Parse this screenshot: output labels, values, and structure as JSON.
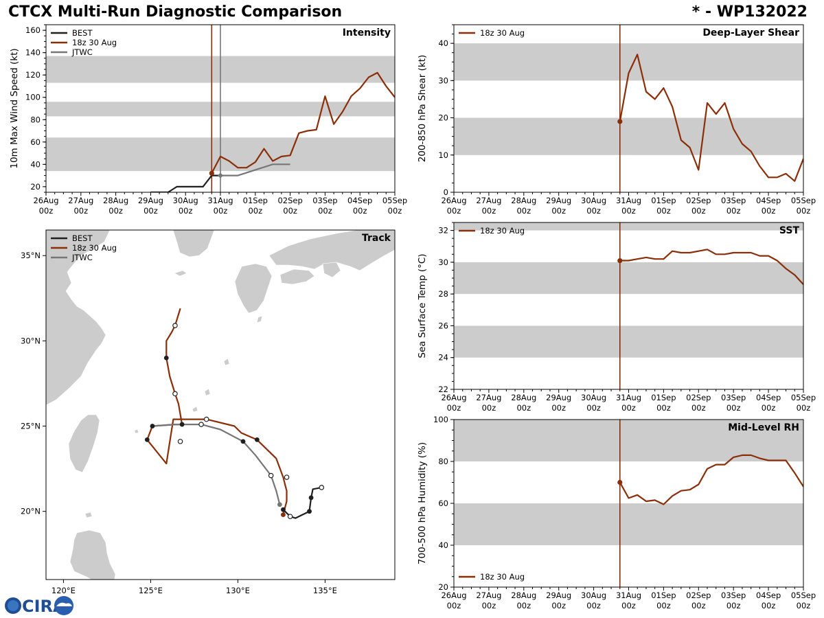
{
  "header": {
    "title": "CTCX Multi-Run Diagnostic Comparison",
    "storm": "* - WP132022"
  },
  "logo_text": "CIRA",
  "time_axis": {
    "labels": [
      "26Aug",
      "27Aug",
      "28Aug",
      "29Aug",
      "30Aug",
      "31Aug",
      "01Sep",
      "02Sep",
      "03Sep",
      "04Sep",
      "05Sep"
    ],
    "sublabel": "00z",
    "init_label": "18z 30 Aug"
  },
  "colors": {
    "best": "#1f1f1f",
    "run": "#8b2e08",
    "jtwc": "#767676",
    "band": "#cccccc",
    "land": "#cccccc"
  },
  "chart_data": [
    {
      "id": "intensity",
      "type": "line",
      "title": "Intensity",
      "ylabel": "10m Max Wind Speed (kt)",
      "x_unit": "days since 26Aug 00z",
      "xlim": [
        0,
        10
      ],
      "ylim": [
        15,
        165
      ],
      "yticks": [
        20,
        40,
        60,
        80,
        100,
        120,
        140,
        160
      ],
      "shaded_bands": [
        [
          34,
          64
        ],
        [
          83,
          96
        ],
        [
          113,
          137
        ]
      ],
      "init_line": 4.75,
      "jtwc_line": 5.0,
      "legend": [
        "BEST",
        "18z 30 Aug",
        "JTWC"
      ],
      "series": [
        {
          "name": "BEST",
          "x": [
            3.0,
            3.25,
            3.5,
            3.75,
            4.0,
            4.25,
            4.5,
            4.75,
            5.0
          ],
          "y": [
            15,
            15,
            15,
            20,
            20,
            20,
            20,
            30,
            30
          ]
        },
        {
          "name": "18z 30 Aug",
          "x": [
            4.75,
            5.0,
            5.25,
            5.5,
            5.75,
            6.0,
            6.25,
            6.5,
            6.75,
            7.0,
            7.25,
            7.5,
            7.75,
            8.0,
            8.25,
            8.5,
            8.75,
            9.0,
            9.25,
            9.5,
            9.75,
            10.0
          ],
          "y": [
            32,
            47,
            43,
            37,
            37,
            42,
            54,
            43,
            47,
            48,
            68,
            70,
            71,
            101,
            76,
            87,
            101,
            108,
            118,
            122,
            110,
            100
          ]
        },
        {
          "name": "JTWC",
          "x": [
            5.0,
            5.5,
            6.5,
            7.0
          ],
          "y": [
            30,
            30,
            40,
            40
          ]
        }
      ]
    },
    {
      "id": "shear",
      "type": "line",
      "title": "Deep-Layer Shear",
      "ylabel": "200-850 hPa Shear (kt)",
      "x_unit": "days since 26Aug 00z",
      "xlim": [
        0,
        10
      ],
      "ylim": [
        0,
        45
      ],
      "yticks": [
        0,
        10,
        20,
        30,
        40
      ],
      "shaded_bands": [
        [
          10,
          20
        ],
        [
          30,
          40
        ]
      ],
      "init_line": 4.75,
      "legend": [
        "18z 30 Aug"
      ],
      "series": [
        {
          "name": "18z 30 Aug",
          "x": [
            4.75,
            5.0,
            5.25,
            5.5,
            5.75,
            6.0,
            6.25,
            6.5,
            6.75,
            7.0,
            7.25,
            7.5,
            7.75,
            8.0,
            8.25,
            8.5,
            8.75,
            9.0,
            9.25,
            9.5,
            9.75,
            10.0
          ],
          "y": [
            19,
            32,
            37,
            27,
            25,
            28,
            23,
            14,
            12,
            6,
            24,
            21,
            24,
            17,
            13,
            11,
            7,
            4,
            4,
            5,
            3,
            9
          ]
        }
      ]
    },
    {
      "id": "sst",
      "type": "line",
      "title": "SST",
      "ylabel": "Sea Surface Temp (°C)",
      "x_unit": "days since 26Aug 00z",
      "xlim": [
        0,
        10
      ],
      "ylim": [
        22,
        32.5
      ],
      "yticks": [
        22,
        24,
        26,
        28,
        30,
        32
      ],
      "shaded_bands": [
        [
          24,
          26
        ],
        [
          28,
          30
        ],
        [
          32,
          34
        ]
      ],
      "init_line": 4.75,
      "legend": [
        "18z 30 Aug"
      ],
      "series": [
        {
          "name": "18z 30 Aug",
          "x": [
            4.75,
            5.0,
            5.25,
            5.5,
            5.75,
            6.0,
            6.25,
            6.5,
            6.75,
            7.0,
            7.25,
            7.5,
            7.75,
            8.0,
            8.25,
            8.5,
            8.75,
            9.0,
            9.25,
            9.5,
            9.75,
            10.0
          ],
          "y": [
            30.1,
            30.1,
            30.2,
            30.3,
            30.2,
            30.2,
            30.7,
            30.6,
            30.6,
            30.7,
            30.8,
            30.5,
            30.5,
            30.6,
            30.6,
            30.6,
            30.4,
            30.4,
            30.1,
            29.6,
            29.2,
            28.6
          ]
        }
      ]
    },
    {
      "id": "rh",
      "type": "line",
      "title": "Mid-Level RH",
      "ylabel": "700-500 hPa Humidity (%)",
      "x_unit": "days since 26Aug 00z",
      "xlim": [
        0,
        10
      ],
      "ylim": [
        20,
        100
      ],
      "yticks": [
        20,
        40,
        60,
        80,
        100
      ],
      "shaded_bands": [
        [
          40,
          60
        ],
        [
          80,
          100
        ]
      ],
      "init_line": 4.75,
      "legend": [
        "18z 30 Aug"
      ],
      "series": [
        {
          "name": "18z 30 Aug",
          "x": [
            4.75,
            5.0,
            5.25,
            5.5,
            5.75,
            6.0,
            6.25,
            6.5,
            6.75,
            7.0,
            7.25,
            7.5,
            7.75,
            8.0,
            8.25,
            8.5,
            8.75,
            9.0,
            9.25,
            9.5,
            9.75,
            10.0
          ],
          "y": [
            70,
            62.5,
            64,
            61,
            61.5,
            59.5,
            63.5,
            66,
            66.5,
            69,
            76.5,
            78.5,
            78.5,
            82,
            83,
            83,
            81.5,
            80.5,
            80.5,
            80.5,
            74.5,
            68
          ]
        }
      ]
    },
    {
      "id": "track",
      "type": "scatter",
      "title": "Track",
      "xlim": [
        119,
        139
      ],
      "ylim": [
        16,
        36.5
      ],
      "xticks": [
        120,
        125,
        130,
        135
      ],
      "xtick_labels": [
        "120°E",
        "125°E",
        "130°E",
        "135°E"
      ],
      "yticks": [
        20,
        25,
        30,
        35
      ],
      "ytick_labels": [
        "20°N",
        "25°N",
        "30°N",
        "35°N"
      ],
      "legend": [
        "BEST",
        "18z 30 Aug",
        "JTWC"
      ],
      "series": [
        {
          "name": "BEST",
          "lon": [
            134.8,
            134.3,
            134.2,
            134.1,
            133.7,
            133.3,
            133.0,
            132.6
          ],
          "lat": [
            21.4,
            21.3,
            20.8,
            20.0,
            19.8,
            19.6,
            19.7,
            20.1
          ]
        },
        {
          "name": "18z 30 Aug",
          "lon": [
            132.6,
            132.8,
            132.8,
            132.6,
            132.2,
            131.1,
            130.2,
            129.8,
            128.2,
            126.8,
            126.3,
            125.9,
            124.8,
            125.1,
            126.4,
            126.8,
            126.6,
            126.4,
            126.1,
            125.9,
            125.9,
            126.2,
            126.4,
            126.7
          ],
          "lat": [
            19.8,
            20.6,
            21.2,
            22.0,
            23.1,
            24.2,
            24.6,
            25.0,
            25.4,
            25.4,
            25.4,
            22.8,
            24.2,
            25.0,
            25.1,
            25.1,
            26.3,
            26.9,
            27.9,
            29.0,
            30.0,
            30.5,
            30.9,
            31.9
          ]
        },
        {
          "name": "JTWC",
          "lon": [
            132.4,
            132.2,
            131.9,
            131.0,
            130.3,
            129.0,
            127.9,
            126.5,
            125.1
          ],
          "lat": [
            20.4,
            21.2,
            22.1,
            23.3,
            24.1,
            24.8,
            25.1,
            25.1,
            25.0
          ]
        }
      ],
      "markers_hollow": [
        {
          "lon": 134.8,
          "lat": 21.4
        },
        {
          "lon": 133.0,
          "lat": 19.7
        },
        {
          "lon": 132.8,
          "lat": 22.0
        },
        {
          "lon": 128.2,
          "lat": 25.4
        },
        {
          "lon": 127.9,
          "lat": 25.1
        },
        {
          "lon": 126.7,
          "lat": 24.1
        },
        {
          "lon": 126.4,
          "lat": 26.9
        },
        {
          "lon": 126.4,
          "lat": 30.9
        },
        {
          "lon": 131.9,
          "lat": 22.1
        }
      ],
      "markers_filled": [
        {
          "lon": 134.2,
          "lat": 20.8,
          "series": "BEST"
        },
        {
          "lon": 134.1,
          "lat": 20.0,
          "series": "BEST"
        },
        {
          "lon": 132.6,
          "lat": 20.1,
          "series": "BEST"
        },
        {
          "lon": 131.1,
          "lat": 24.2,
          "series": "BEST"
        },
        {
          "lon": 130.3,
          "lat": 24.1,
          "series": "BEST"
        },
        {
          "lon": 126.8,
          "lat": 25.1,
          "series": "BEST"
        },
        {
          "lon": 125.1,
          "lat": 25.0,
          "series": "BEST"
        },
        {
          "lon": 124.8,
          "lat": 24.2,
          "series": "BEST"
        },
        {
          "lon": 125.9,
          "lat": 29.0,
          "series": "BEST"
        },
        {
          "lon": 132.6,
          "lat": 19.8,
          "series": "18z 30 Aug"
        },
        {
          "lon": 132.4,
          "lat": 20.4,
          "series": "JTWC"
        }
      ]
    }
  ]
}
